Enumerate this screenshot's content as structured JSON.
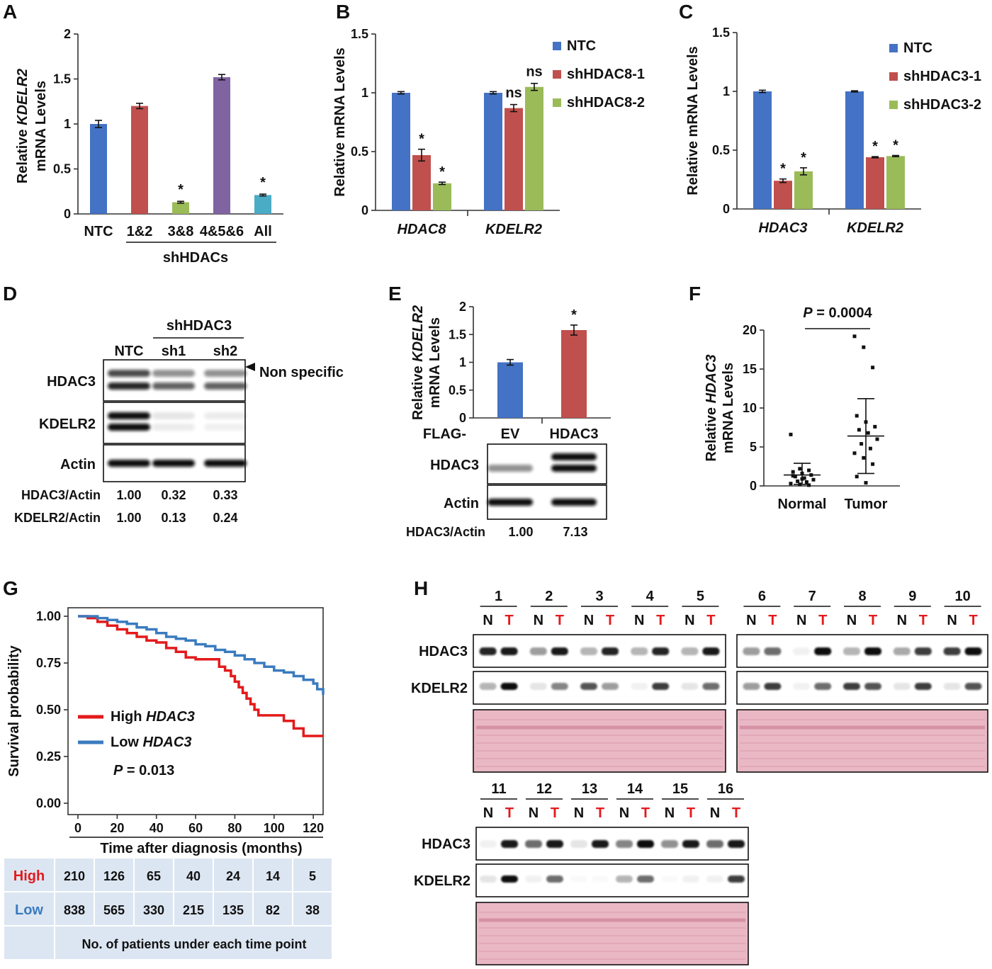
{
  "colors": {
    "blue": "#4472c4",
    "red": "#c0504d",
    "green": "#9bbb59",
    "purple": "#8064a2",
    "cyan": "#4bacc6",
    "km_high": "#e31a1c",
    "km_low": "#3a7bbf",
    "table_bg": "#dce6f2",
    "ponceau": "#e9b8c4"
  },
  "panels": {
    "A": "A",
    "B": "B",
    "C": "C",
    "D": "D",
    "E": "E",
    "F": "F",
    "G": "G",
    "H": "H"
  },
  "chart_data": [
    {
      "id": "A",
      "type": "bar",
      "ylabel_pre": "Relative ",
      "ylabel_gene": "KDELR2",
      "ylabel_line2": "mRNA Levels",
      "ylim": [
        0,
        2
      ],
      "yticks": [
        "0",
        "0.5",
        "1",
        "1.5",
        "2"
      ],
      "categories": [
        "NTC",
        "1&2",
        "3&8",
        "4&5&6",
        "All"
      ],
      "group_label": "shHDACs",
      "values": [
        1.0,
        1.2,
        0.13,
        1.52,
        0.21
      ],
      "errors": [
        0.04,
        0.03,
        0.01,
        0.03,
        0.01
      ],
      "colors": [
        "#4472c4",
        "#c0504d",
        "#9bbb59",
        "#8064a2",
        "#4bacc6"
      ],
      "marks": [
        "",
        "",
        "*",
        "",
        "*"
      ]
    },
    {
      "id": "B",
      "type": "bar",
      "ylabel": "Relative mRNA Levels",
      "ylim": [
        0,
        1.5
      ],
      "yticks": [
        "0",
        "0.5",
        "1",
        "1.5"
      ],
      "categories": [
        "HDAC8",
        "KDELR2"
      ],
      "series": [
        {
          "name": "NTC",
          "values": [
            1.0,
            1.0
          ],
          "errors": [
            0.01,
            0.01
          ],
          "color": "#4472c4",
          "marks": [
            "",
            ""
          ]
        },
        {
          "name": "shHDAC8-1",
          "values": [
            0.47,
            0.87
          ],
          "errors": [
            0.05,
            0.03
          ],
          "color": "#c0504d",
          "marks": [
            "*",
            "ns"
          ]
        },
        {
          "name": "shHDAC8-2",
          "values": [
            0.23,
            1.05
          ],
          "errors": [
            0.01,
            0.03
          ],
          "color": "#9bbb59",
          "marks": [
            "*",
            "ns"
          ]
        }
      ]
    },
    {
      "id": "C",
      "type": "bar",
      "ylabel": "Relative mRNA Levels",
      "ylim": [
        0,
        1.5
      ],
      "yticks": [
        "0",
        "0.5",
        "1",
        "1.5"
      ],
      "categories": [
        "HDAC3",
        "KDELR2"
      ],
      "series": [
        {
          "name": "NTC",
          "values": [
            1.0,
            1.0
          ],
          "errors": [
            0.01,
            0.005
          ],
          "color": "#4472c4",
          "marks": [
            "",
            ""
          ]
        },
        {
          "name": "shHDAC3-1",
          "values": [
            0.24,
            0.44
          ],
          "errors": [
            0.015,
            0.005
          ],
          "color": "#c0504d",
          "marks": [
            "*",
            "*"
          ]
        },
        {
          "name": "shHDAC3-2",
          "values": [
            0.32,
            0.45
          ],
          "errors": [
            0.03,
            0.005
          ],
          "color": "#9bbb59",
          "marks": [
            "*",
            "*"
          ]
        }
      ]
    },
    {
      "id": "E",
      "type": "bar",
      "ylabel_pre": "Relative ",
      "ylabel_gene": "KDELR2",
      "ylabel_line2": "mRNA Levels",
      "ylim": [
        0,
        2
      ],
      "yticks": [
        "0",
        "0.5",
        "1",
        "1.5",
        "2"
      ],
      "prefix": "FLAG-",
      "categories": [
        "EV",
        "HDAC3"
      ],
      "values": [
        1.0,
        1.58
      ],
      "errors": [
        0.05,
        0.09
      ],
      "colors": [
        "#4472c4",
        "#c0504d"
      ],
      "marks": [
        "",
        "*"
      ]
    },
    {
      "id": "F",
      "type": "scatter",
      "ylabel_pre": "Relative ",
      "ylabel_gene": "HDAC3",
      "ylabel_line2": "mRNA Levels",
      "ylim": [
        0,
        20
      ],
      "yticks": [
        "0",
        "5",
        "10",
        "15",
        "20"
      ],
      "categories": [
        "Normal",
        "Tumor"
      ],
      "pvalue_label": "P",
      "pvalue": "= 0.0004",
      "groups": [
        {
          "name": "Normal",
          "mean": 1.4,
          "sd_low": 0.2,
          "sd_high": 2.9,
          "points": [
            6.6,
            2.2,
            2.0,
            1.8,
            1.6,
            1.4,
            1.2,
            1.0,
            0.8,
            0.6,
            0.5,
            0.3,
            0.2,
            0.1,
            1.3,
            0.9
          ]
        },
        {
          "name": "Tumor",
          "mean": 6.4,
          "sd_low": 1.6,
          "sd_high": 11.2,
          "points": [
            19.2,
            17.8,
            15.2,
            9.0,
            8.2,
            7.6,
            7.2,
            6.8,
            6.0,
            5.4,
            4.8,
            4.2,
            3.6,
            2.8,
            1.2,
            0.4
          ]
        }
      ]
    },
    {
      "id": "G",
      "type": "line",
      "ylabel": "Survival probability",
      "xlabel": "Time after diagnosis (months)",
      "xlim": [
        0,
        125
      ],
      "ylim": [
        0,
        1
      ],
      "xticks": [
        "0",
        "20",
        "40",
        "60",
        "80",
        "100",
        "120"
      ],
      "yticks": [
        "0.00",
        "0.25",
        "0.50",
        "0.75",
        "1.00"
      ],
      "pvalue_label": "P",
      "pvalue": "= 0.013",
      "series": [
        {
          "name_pre": "High ",
          "name_gene": "HDAC3",
          "color": "#e31a1c",
          "x": [
            0,
            5,
            10,
            15,
            20,
            25,
            30,
            35,
            40,
            45,
            50,
            55,
            60,
            65,
            70,
            72,
            75,
            78,
            80,
            82,
            84,
            86,
            88,
            90,
            92,
            95,
            100,
            105,
            110,
            115,
            120,
            125
          ],
          "y": [
            1.0,
            0.99,
            0.97,
            0.95,
            0.93,
            0.91,
            0.89,
            0.87,
            0.86,
            0.83,
            0.81,
            0.78,
            0.77,
            0.77,
            0.77,
            0.73,
            0.71,
            0.68,
            0.65,
            0.62,
            0.59,
            0.56,
            0.53,
            0.5,
            0.47,
            0.47,
            0.47,
            0.44,
            0.4,
            0.36,
            0.36,
            0.36
          ]
        },
        {
          "name_pre": "Low ",
          "name_gene": "HDAC3",
          "color": "#3a7bbf",
          "x": [
            0,
            5,
            10,
            15,
            20,
            25,
            30,
            35,
            40,
            45,
            50,
            55,
            60,
            65,
            70,
            75,
            80,
            85,
            90,
            95,
            100,
            105,
            110,
            115,
            120,
            122,
            125
          ],
          "y": [
            1.0,
            1.0,
            0.99,
            0.98,
            0.97,
            0.96,
            0.94,
            0.93,
            0.91,
            0.89,
            0.88,
            0.87,
            0.85,
            0.84,
            0.82,
            0.81,
            0.79,
            0.77,
            0.75,
            0.73,
            0.71,
            0.7,
            0.68,
            0.66,
            0.64,
            0.61,
            0.58
          ]
        }
      ],
      "risk_table": {
        "rows": [
          {
            "label": "High",
            "color": "#e31a1c",
            "values": [
              "210",
              "126",
              "65",
              "40",
              "24",
              "14",
              "5"
            ]
          },
          {
            "label": "Low",
            "color": "#3a7bbf",
            "values": [
              "838",
              "565",
              "330",
              "215",
              "135",
              "82",
              "38"
            ]
          }
        ],
        "caption": "No. of patients under each time point"
      }
    }
  ],
  "blot_D": {
    "treatment": "shHDAC3",
    "lanes": [
      "NTC",
      "sh1",
      "sh2"
    ],
    "bands": [
      "HDAC3",
      "KDELR2",
      "Actin"
    ],
    "annotation": "Non specific",
    "quant": [
      {
        "label": "HDAC3/Actin",
        "values": [
          "1.00",
          "0.32",
          "0.33"
        ]
      },
      {
        "label": "KDELR2/Actin",
        "values": [
          "1.00",
          "0.13",
          "0.24"
        ]
      }
    ]
  },
  "blot_E": {
    "bands": [
      "HDAC3",
      "Actin"
    ],
    "quant_label": "HDAC3/Actin",
    "quant_values": [
      "1.00",
      "7.13"
    ]
  },
  "blot_H": {
    "bands": [
      "HDAC3",
      "KDELR2"
    ],
    "lane_n": "N",
    "lane_t": "T",
    "samples_row1a": [
      "1",
      "2",
      "3",
      "4",
      "5"
    ],
    "samples_row1b": [
      "6",
      "7",
      "8",
      "9",
      "10"
    ],
    "samples_row2": [
      "11",
      "12",
      "13",
      "14",
      "15",
      "16"
    ],
    "hdac3_level": [
      [
        0.9,
        0.95
      ],
      [
        0.4,
        0.95
      ],
      [
        0.3,
        0.9
      ],
      [
        0.3,
        0.9
      ],
      [
        0.3,
        0.95
      ],
      [
        0.4,
        0.6
      ],
      [
        0.05,
        1.0
      ],
      [
        0.3,
        1.0
      ],
      [
        0.35,
        0.8
      ],
      [
        0.8,
        1.0
      ],
      [
        0.05,
        0.95
      ],
      [
        0.6,
        0.95
      ],
      [
        0.1,
        0.95
      ],
      [
        0.5,
        1.0
      ],
      [
        0.45,
        0.95
      ],
      [
        0.6,
        0.95
      ]
    ],
    "kdelr2_level": [
      [
        0.3,
        1.0
      ],
      [
        0.1,
        0.5
      ],
      [
        0.7,
        0.4
      ],
      [
        0.05,
        0.8
      ],
      [
        0.1,
        0.6
      ],
      [
        0.4,
        0.8
      ],
      [
        0.05,
        0.6
      ],
      [
        0.8,
        0.7
      ],
      [
        0.1,
        0.8
      ],
      [
        0.1,
        0.7
      ],
      [
        0.1,
        1.0
      ],
      [
        0.05,
        0.6
      ],
      [
        0.02,
        0.02
      ],
      [
        0.3,
        0.6
      ],
      [
        0.02,
        0.05
      ],
      [
        0.05,
        0.8
      ]
    ]
  }
}
